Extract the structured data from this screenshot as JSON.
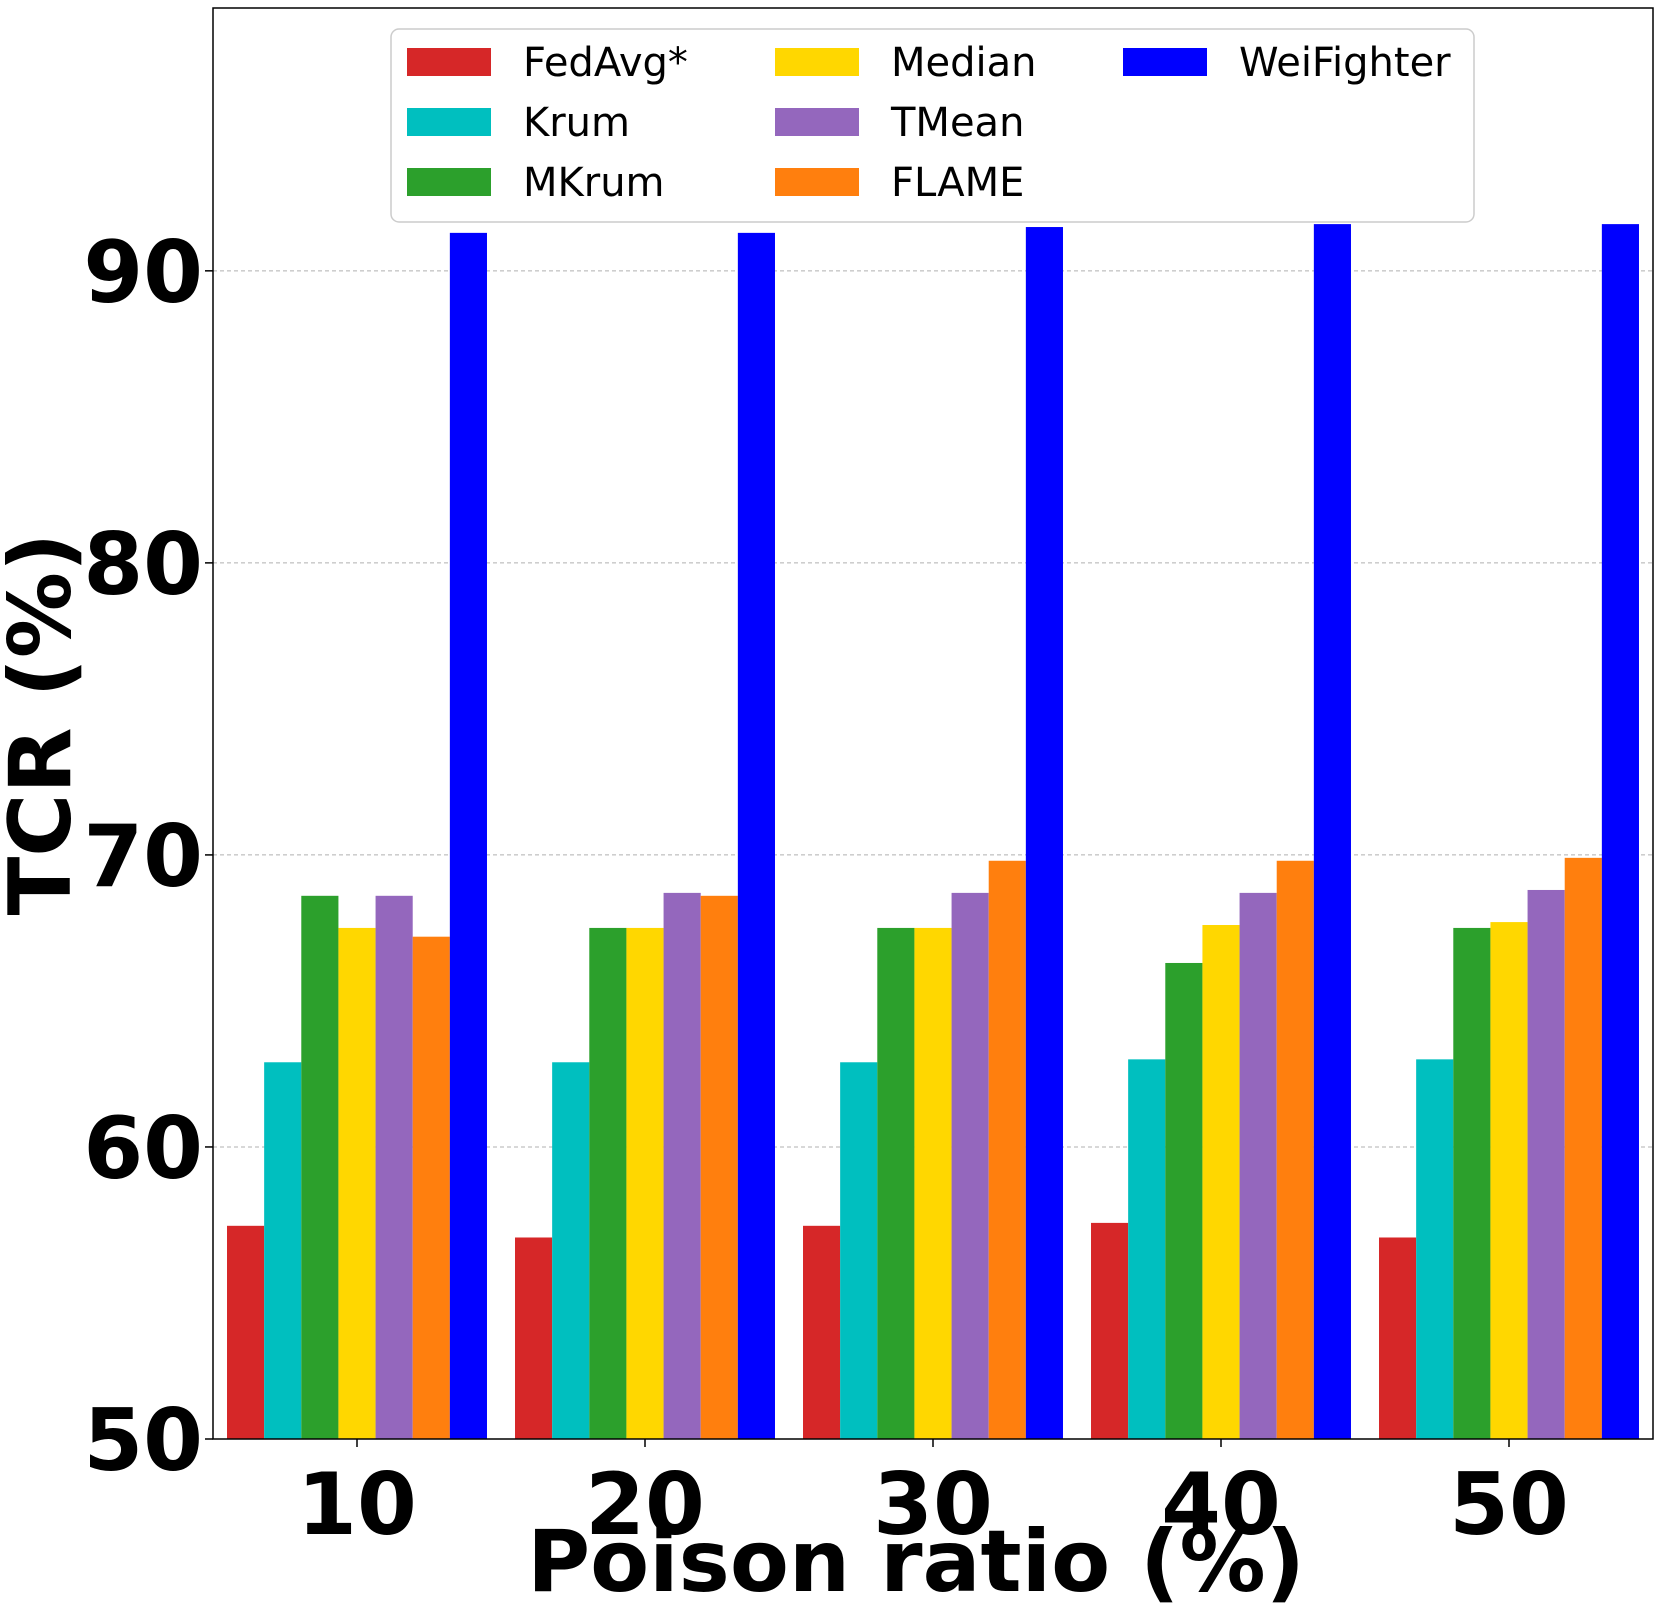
{
  "chart_data": {
    "type": "bar",
    "title": "",
    "xlabel": "Poison ratio (%)",
    "ylabel": "TCR (%)",
    "categories": [
      "10",
      "20",
      "30",
      "40",
      "50"
    ],
    "ylim": [
      50,
      99
    ],
    "yticks": [
      50,
      60,
      70,
      80,
      90
    ],
    "grid": "horizontal dashed",
    "legend_position": "top",
    "series": [
      {
        "name": "FedAvg*",
        "color": "#d62728",
        "values": [
          57.3,
          56.9,
          57.3,
          57.4,
          56.9
        ]
      },
      {
        "name": "Krum",
        "color": "#00bfbf",
        "values": [
          62.9,
          62.9,
          62.9,
          63.0,
          63.0
        ]
      },
      {
        "name": "MKrum",
        "color": "#2ca02c",
        "values": [
          68.6,
          67.5,
          67.5,
          66.3,
          67.5
        ]
      },
      {
        "name": "Median",
        "color": "#ffd700",
        "values": [
          67.5,
          67.5,
          67.5,
          67.6,
          67.7
        ]
      },
      {
        "name": "TMean",
        "color": "#9467bd",
        "values": [
          68.6,
          68.7,
          68.7,
          68.7,
          68.8
        ]
      },
      {
        "name": "FLAME",
        "color": "#ff7f0e",
        "values": [
          67.2,
          68.6,
          69.8,
          69.8,
          69.9
        ]
      },
      {
        "name": "WeiFighter",
        "color": "#0000ff",
        "values": [
          91.3,
          91.3,
          91.5,
          91.6,
          91.6
        ]
      }
    ]
  }
}
